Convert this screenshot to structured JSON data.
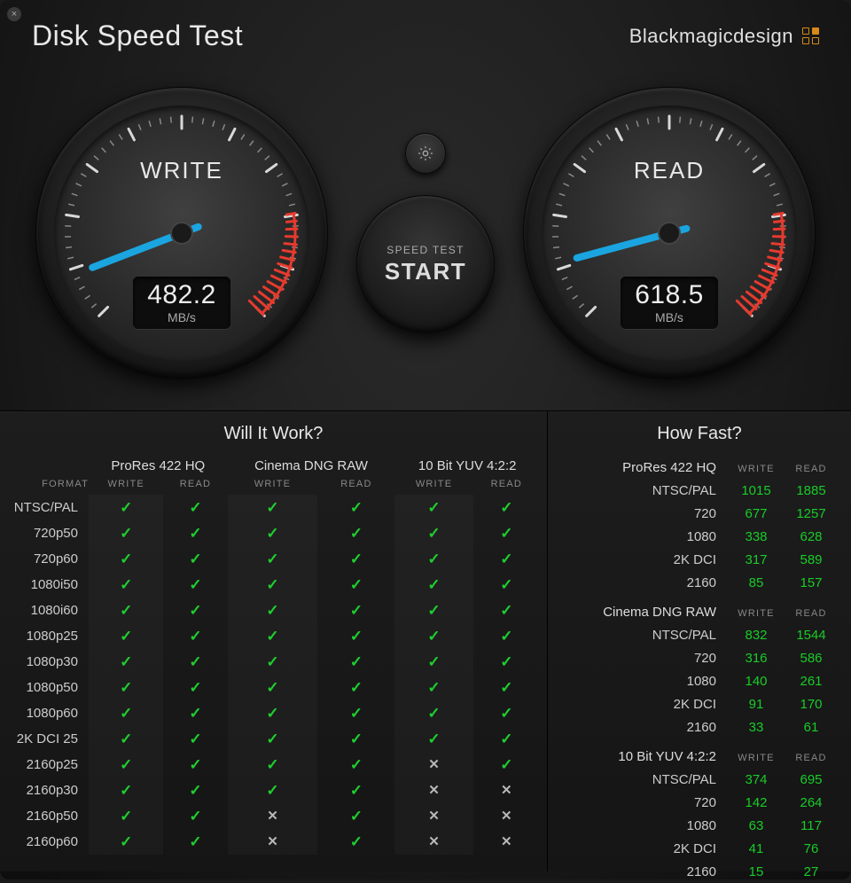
{
  "app_title": "Disk Speed Test",
  "brand": "Blackmagicdesign",
  "close_glyph": "×",
  "colors": {
    "background": "#1a1a1a",
    "needle": "#1aa5e0",
    "redzone": "#e63a2e",
    "check": "#1fce2f",
    "x": "#b8b8b8",
    "fast_value": "#19cc28",
    "accent_orange": "#d68a1a",
    "text_primary": "#e8e8e8",
    "text_muted": "#888888"
  },
  "gauges": {
    "write": {
      "label": "WRITE",
      "value": "482.2",
      "unit": "MB/s",
      "angle_deg_from_min": 24,
      "min_angle": -225,
      "max_angle": 45,
      "redzone_start_angle": -10,
      "redzone_end_angle": 45,
      "tick_count": 11
    },
    "read": {
      "label": "READ",
      "value": "618.5",
      "unit": "MB/s",
      "angle_deg_from_min": 30,
      "min_angle": -225,
      "max_angle": 45,
      "redzone_start_angle": -10,
      "redzone_end_angle": 45,
      "tick_count": 11
    }
  },
  "start_button": {
    "sub": "SPEED TEST",
    "main": "START"
  },
  "will_it_work": {
    "title": "Will It Work?",
    "format_header": "FORMAT",
    "col_write": "WRITE",
    "col_read": "READ",
    "groups": [
      "ProRes 422 HQ",
      "Cinema DNG RAW",
      "10 Bit YUV 4:2:2"
    ],
    "formats": [
      "NTSC/PAL",
      "720p50",
      "720p60",
      "1080i50",
      "1080i60",
      "1080p25",
      "1080p30",
      "1080p50",
      "1080p60",
      "2K DCI 25",
      "2160p25",
      "2160p30",
      "2160p50",
      "2160p60"
    ],
    "grid": [
      [
        [
          true,
          true
        ],
        [
          true,
          true
        ],
        [
          true,
          true
        ]
      ],
      [
        [
          true,
          true
        ],
        [
          true,
          true
        ],
        [
          true,
          true
        ]
      ],
      [
        [
          true,
          true
        ],
        [
          true,
          true
        ],
        [
          true,
          true
        ]
      ],
      [
        [
          true,
          true
        ],
        [
          true,
          true
        ],
        [
          true,
          true
        ]
      ],
      [
        [
          true,
          true
        ],
        [
          true,
          true
        ],
        [
          true,
          true
        ]
      ],
      [
        [
          true,
          true
        ],
        [
          true,
          true
        ],
        [
          true,
          true
        ]
      ],
      [
        [
          true,
          true
        ],
        [
          true,
          true
        ],
        [
          true,
          true
        ]
      ],
      [
        [
          true,
          true
        ],
        [
          true,
          true
        ],
        [
          true,
          true
        ]
      ],
      [
        [
          true,
          true
        ],
        [
          true,
          true
        ],
        [
          true,
          true
        ]
      ],
      [
        [
          true,
          true
        ],
        [
          true,
          true
        ],
        [
          true,
          true
        ]
      ],
      [
        [
          true,
          true
        ],
        [
          true,
          true
        ],
        [
          false,
          true
        ]
      ],
      [
        [
          true,
          true
        ],
        [
          true,
          true
        ],
        [
          false,
          false
        ]
      ],
      [
        [
          true,
          true
        ],
        [
          false,
          true
        ],
        [
          false,
          false
        ]
      ],
      [
        [
          true,
          true
        ],
        [
          false,
          true
        ],
        [
          false,
          false
        ]
      ]
    ]
  },
  "how_fast": {
    "title": "How Fast?",
    "col_write": "WRITE",
    "col_read": "READ",
    "sections": [
      {
        "codec": "ProRes 422 HQ",
        "rows": [
          {
            "fmt": "NTSC/PAL",
            "write": "1015",
            "read": "1885"
          },
          {
            "fmt": "720",
            "write": "677",
            "read": "1257"
          },
          {
            "fmt": "1080",
            "write": "338",
            "read": "628"
          },
          {
            "fmt": "2K DCI",
            "write": "317",
            "read": "589"
          },
          {
            "fmt": "2160",
            "write": "85",
            "read": "157"
          }
        ]
      },
      {
        "codec": "Cinema DNG RAW",
        "rows": [
          {
            "fmt": "NTSC/PAL",
            "write": "832",
            "read": "1544"
          },
          {
            "fmt": "720",
            "write": "316",
            "read": "586"
          },
          {
            "fmt": "1080",
            "write": "140",
            "read": "261"
          },
          {
            "fmt": "2K DCI",
            "write": "91",
            "read": "170"
          },
          {
            "fmt": "2160",
            "write": "33",
            "read": "61"
          }
        ]
      },
      {
        "codec": "10 Bit YUV 4:2:2",
        "rows": [
          {
            "fmt": "NTSC/PAL",
            "write": "374",
            "read": "695"
          },
          {
            "fmt": "720",
            "write": "142",
            "read": "264"
          },
          {
            "fmt": "1080",
            "write": "63",
            "read": "117"
          },
          {
            "fmt": "2K DCI",
            "write": "41",
            "read": "76"
          },
          {
            "fmt": "2160",
            "write": "15",
            "read": "27"
          }
        ]
      }
    ]
  }
}
